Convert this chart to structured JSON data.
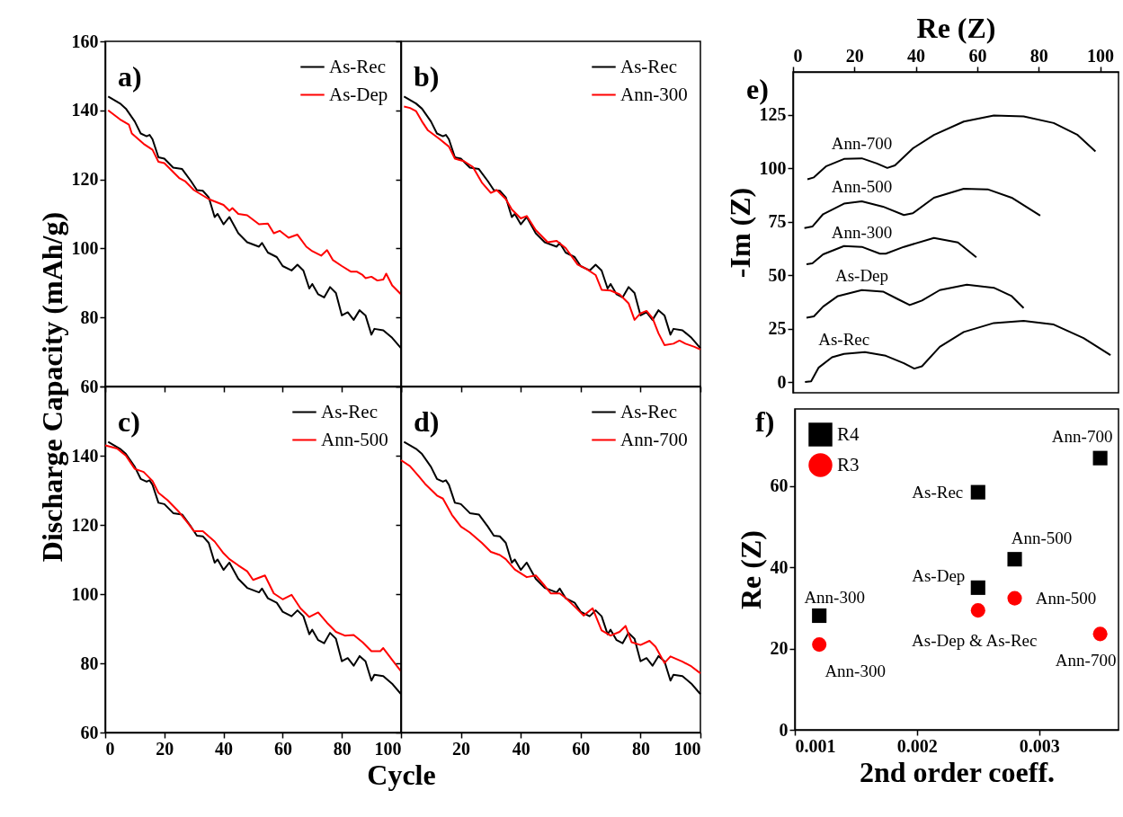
{
  "chart_data": [
    {
      "type": "line",
      "ylabel": "Discharge Capacity (mAh/g)",
      "annotations": [
        "a)"
      ],
      "xlim": [
        0,
        100
      ],
      "xticks": [
        0,
        20,
        40,
        60,
        80,
        100
      ],
      "ylim": [
        60,
        160
      ],
      "yticks": [
        60,
        80,
        100,
        120,
        140,
        160
      ],
      "tick_labels": "y",
      "legend": "top right",
      "series": [
        {
          "name": "As-Rec",
          "color": "#000000",
          "x": [
            1,
            5,
            7,
            10,
            12,
            14,
            15,
            16,
            18,
            20,
            23,
            26,
            29,
            31,
            33,
            35,
            37,
            38,
            40,
            42,
            45,
            48,
            52,
            53,
            55,
            58,
            60,
            63,
            65,
            67,
            69,
            70,
            72,
            74,
            76,
            78,
            80,
            82,
            84,
            86,
            88,
            90,
            91,
            94,
            97,
            100
          ],
          "values": [
            144,
            142,
            140.5,
            136.8,
            133.3,
            132.5,
            132.9,
            131.6,
            126.4,
            126,
            123.4,
            123,
            119.5,
            116.9,
            116.7,
            114.8,
            109.1,
            110,
            107,
            109.1,
            104.4,
            101.8,
            100.5,
            101.6,
            98.8,
            97.5,
            94.9,
            93.6,
            95.3,
            93.6,
            88.4,
            89.7,
            86.7,
            85.8,
            88.8,
            87.1,
            80.6,
            81.5,
            79.3,
            82.1,
            80.6,
            75,
            76.7,
            76.3,
            74.1,
            71.1
          ]
        },
        {
          "name": "As-Dep",
          "color": "#ff0000",
          "x": [
            1,
            5,
            8,
            9,
            13,
            16,
            18,
            20,
            25,
            27,
            30,
            35,
            40,
            42,
            43,
            45,
            48,
            50,
            52,
            55,
            57,
            59,
            62,
            65,
            68,
            70,
            73,
            75,
            77,
            80,
            83,
            85,
            87,
            88,
            90,
            92,
            94,
            95,
            97,
            100
          ],
          "values": [
            140,
            137.4,
            135.9,
            133.3,
            130.3,
            128.6,
            125.1,
            124.7,
            120.4,
            119.5,
            116.9,
            114.3,
            112.6,
            110.9,
            111.7,
            110,
            109.6,
            108.3,
            107,
            107.2,
            104.4,
            105.1,
            103.1,
            104,
            100.5,
            99.2,
            97.9,
            99.5,
            96.6,
            94.9,
            93.3,
            93.3,
            92.3,
            91.4,
            91.8,
            90.7,
            91,
            92.7,
            89.3,
            86.7
          ]
        }
      ]
    },
    {
      "type": "line",
      "annotations": [
        "b)"
      ],
      "xlim": [
        0,
        100
      ],
      "xticks": [
        0,
        20,
        40,
        60,
        80,
        100
      ],
      "ylim": [
        60,
        160
      ],
      "yticks": [
        60,
        80,
        100,
        120,
        140,
        160
      ],
      "tick_labels": false,
      "legend": "top right",
      "series": [
        {
          "name": "As-Rec",
          "color": "#000000",
          "x": [
            1,
            5,
            7,
            10,
            12,
            14,
            15,
            16,
            18,
            20,
            23,
            26,
            29,
            31,
            33,
            35,
            37,
            38,
            40,
            42,
            45,
            48,
            52,
            53,
            55,
            58,
            60,
            63,
            65,
            67,
            69,
            70,
            72,
            74,
            76,
            78,
            80,
            82,
            84,
            86,
            88,
            90,
            91,
            94,
            97,
            100
          ],
          "values": [
            144,
            142,
            140.5,
            136.8,
            133.3,
            132.5,
            132.9,
            131.6,
            126.4,
            126,
            123.4,
            123,
            119.5,
            116.9,
            116.7,
            114.8,
            109.1,
            110,
            107,
            109.1,
            104.4,
            101.8,
            100.5,
            101.6,
            98.8,
            97.5,
            94.9,
            93.6,
            95.3,
            93.6,
            88.4,
            89.7,
            86.7,
            85.8,
            88.8,
            87.1,
            80.6,
            81.5,
            79.3,
            82.1,
            80.6,
            75,
            76.7,
            76.3,
            74.1,
            71.1
          ]
        },
        {
          "name": "Ann-300",
          "color": "#ff0000",
          "x": [
            1,
            3,
            5,
            7,
            9,
            13,
            16,
            18,
            21,
            24,
            27,
            30,
            32,
            35,
            37,
            40,
            42,
            45,
            49,
            52,
            55,
            59,
            62,
            65,
            67,
            70,
            73,
            76,
            78,
            80,
            82,
            84,
            86,
            88,
            91,
            93,
            95,
            98,
            100
          ],
          "values": [
            141.1,
            140.7,
            139.8,
            136.8,
            134.2,
            131.6,
            129.5,
            126,
            125.3,
            123.6,
            119.1,
            116.1,
            116.9,
            114.3,
            111.3,
            108.7,
            109.4,
            105.3,
            101.8,
            102.2,
            100.1,
            95.3,
            94,
            92.3,
            88,
            87.8,
            86.7,
            84.1,
            79.3,
            81.2,
            81.9,
            79.8,
            75.4,
            72,
            72.4,
            73.3,
            72.4,
            71.5,
            70.7
          ]
        }
      ]
    },
    {
      "type": "line",
      "xlabel": "Cycle",
      "annotations": [
        "c)"
      ],
      "xlim": [
        0,
        100
      ],
      "xticks": [
        0,
        20,
        40,
        60,
        80,
        100
      ],
      "ylim": [
        60,
        160
      ],
      "yticks": [
        60,
        80,
        100,
        120,
        140,
        {
          "value": 160,
          "label": null
        }
      ],
      "legend": "top right",
      "series": [
        {
          "name": "As-Rec",
          "color": "#000000",
          "x": [
            1,
            5,
            7,
            10,
            12,
            14,
            15,
            16,
            18,
            20,
            23,
            26,
            29,
            31,
            33,
            35,
            37,
            38,
            40,
            42,
            45,
            48,
            52,
            53,
            55,
            58,
            60,
            63,
            65,
            67,
            69,
            70,
            72,
            74,
            76,
            78,
            80,
            82,
            84,
            86,
            88,
            90,
            91,
            94,
            97,
            100
          ],
          "values": [
            144,
            142,
            140.5,
            136.8,
            133.3,
            132.5,
            132.9,
            131.6,
            126.4,
            126,
            123.4,
            123,
            119.5,
            116.9,
            116.7,
            114.8,
            109.1,
            110,
            107,
            109.1,
            104.4,
            101.8,
            100.5,
            101.6,
            98.8,
            97.5,
            94.9,
            93.6,
            95.3,
            93.6,
            88.4,
            89.7,
            86.7,
            85.8,
            88.8,
            87.1,
            80.6,
            81.5,
            79.3,
            82.1,
            80.6,
            75,
            76.7,
            76.3,
            74.1,
            71.1
          ]
        },
        {
          "name": "Ann-500",
          "color": "#ff0000",
          "x": [
            0,
            4,
            7,
            10,
            13,
            16,
            18,
            21,
            25,
            28,
            30,
            33,
            37,
            40,
            42,
            45,
            48,
            50,
            54,
            57,
            60,
            63,
            66,
            69,
            72,
            75,
            78,
            81,
            84,
            87,
            90,
            93,
            94,
            97,
            100
          ],
          "values": [
            143,
            142.1,
            140,
            136.2,
            135.3,
            132.7,
            129.3,
            127.2,
            123.7,
            120.5,
            118.2,
            118.2,
            115.2,
            111.8,
            110.1,
            108.3,
            106.6,
            104.1,
            105.4,
            100.2,
            98.5,
            99.8,
            95.9,
            93.4,
            94.7,
            91.7,
            89.1,
            88,
            88.2,
            86.1,
            83.5,
            83.5,
            84.4,
            81,
            77.7
          ]
        }
      ]
    },
    {
      "type": "line",
      "annotations": [
        "d)"
      ],
      "xlim": [
        0,
        100
      ],
      "xticks": [
        20,
        40,
        60,
        80,
        100
      ],
      "ylim": [
        60,
        160
      ],
      "yticks": [
        60,
        80,
        100,
        120,
        140,
        160
      ],
      "tick_labels": "x",
      "legend": "top right",
      "series": [
        {
          "name": "As-Rec",
          "color": "#000000",
          "x": [
            1,
            5,
            7,
            10,
            12,
            14,
            15,
            16,
            18,
            20,
            23,
            26,
            29,
            31,
            33,
            35,
            37,
            38,
            40,
            42,
            45,
            48,
            52,
            53,
            55,
            58,
            60,
            63,
            65,
            67,
            69,
            70,
            72,
            74,
            76,
            78,
            80,
            82,
            84,
            86,
            88,
            90,
            91,
            94,
            97,
            100
          ],
          "values": [
            144,
            142,
            140.5,
            136.8,
            133.3,
            132.5,
            132.9,
            131.6,
            126.4,
            126,
            123.4,
            123,
            119.5,
            116.9,
            116.7,
            114.8,
            109.1,
            110,
            107,
            109.1,
            104.4,
            101.8,
            100.5,
            101.6,
            98.8,
            97.5,
            94.9,
            93.6,
            95.3,
            93.6,
            88.4,
            89.7,
            86.7,
            85.8,
            88.8,
            87.1,
            80.6,
            81.5,
            79.3,
            82.1,
            80.6,
            75,
            76.7,
            76.3,
            74.1,
            71.1
          ]
        },
        {
          "name": "Ann-700",
          "color": "#ff0000",
          "x": [
            0,
            3,
            6,
            8,
            12,
            14,
            17,
            20,
            23,
            27,
            30,
            33,
            35,
            38,
            42,
            45,
            48,
            50,
            53,
            55,
            58,
            61,
            64,
            67,
            70,
            73,
            75,
            77,
            80,
            83,
            85,
            88,
            90,
            94,
            97,
            100
          ],
          "values": [
            138.7,
            137,
            134,
            131.9,
            128.5,
            127.6,
            122.9,
            119.5,
            117.8,
            114.8,
            112.2,
            111.3,
            110.1,
            107.1,
            104.9,
            105.4,
            102.4,
            100.2,
            100.2,
            98.9,
            96.4,
            93.8,
            95.9,
            89.5,
            88,
            89.1,
            90.8,
            86.1,
            85.3,
            86.5,
            84.8,
            80.1,
            82,
            80.5,
            79.1,
            77.1
          ]
        }
      ]
    },
    {
      "type": "line",
      "xlabel": "Re (Z)",
      "ylabel": "-Im (Z)",
      "annotations": [
        "e)"
      ],
      "xlim": [
        0,
        106
      ],
      "xticks": [
        0,
        20,
        40,
        60,
        80,
        100
      ],
      "ylim": [
        -5,
        145
      ],
      "yticks": [
        0,
        25,
        50,
        75,
        100,
        125
      ],
      "series": [
        {
          "name": "Ann-700",
          "color": "#000000",
          "x": [
            4.7,
            6.8,
            10.7,
            16.6,
            22.4,
            27.3,
            30.7,
            33.2,
            39,
            45.9,
            55.6,
            65.4,
            75.1,
            84.9,
            92.7,
            98.5
          ],
          "values": [
            94.8,
            95.7,
            100.8,
            104.3,
            104.6,
            102.2,
            100.1,
            101.3,
            109.2,
            115.5,
            121.8,
            124.6,
            124.2,
            121.1,
            115.5,
            107.8
          ]
        },
        {
          "name": "Ann-500",
          "color": "#000000",
          "x": [
            3.7,
            6.3,
            9.8,
            16.6,
            22.4,
            29.3,
            36.1,
            39,
            45.9,
            55.6,
            63.4,
            71.2,
            80.5
          ],
          "values": [
            72,
            72.7,
            78.5,
            83.4,
            84.5,
            82,
            78.1,
            78.9,
            86.2,
            90.4,
            90.1,
            86.2,
            77.8
          ]
        },
        {
          "name": "Ann-300",
          "color": "#000000",
          "x": [
            4.4,
            6.3,
            9.8,
            16.6,
            22.4,
            28.3,
            30.2,
            36.1,
            45.9,
            53.7,
            59.7
          ],
          "values": [
            55.1,
            55.5,
            59.7,
            63.6,
            63.2,
            60,
            60,
            63.2,
            67.4,
            65.3,
            58.3
          ]
        },
        {
          "name": "As-Dep",
          "color": "#000000",
          "x": [
            4.4,
            6.8,
            9.8,
            14.6,
            22.4,
            29.3,
            34.1,
            38,
            42,
            47.8,
            56.6,
            65.4,
            71.2,
            75.1
          ],
          "values": [
            30.1,
            30.7,
            35.3,
            40.2,
            43,
            42.3,
            38.8,
            36,
            38.1,
            43,
            45.5,
            44.1,
            40.2,
            34.6
          ]
        },
        {
          "name": "As-Rec",
          "color": "#000000",
          "x": [
            3.9,
            5.9,
            8.3,
            12.7,
            16.6,
            23.4,
            30.2,
            36.1,
            39.5,
            42,
            47.8,
            55.6,
            65.4,
            75.1,
            84.9,
            94.6,
            103.4
          ],
          "values": [
            0,
            0.4,
            6.7,
            11.6,
            13.2,
            14,
            12.3,
            8.8,
            6.3,
            7.4,
            16.5,
            23.4,
            27.6,
            28.6,
            26.9,
            20.6,
            12.6
          ]
        }
      ]
    },
    {
      "type": "scatter",
      "xlabel": "2nd order coeff.",
      "ylabel": "Re (Z)",
      "xlim": [
        0.001,
        0.00365
      ],
      "xticks": [
        0.001,
        0.002,
        0.003
      ],
      "ylim": [
        0,
        79
      ],
      "yticks": [
        0,
        20,
        40,
        60
      ],
      "legend": "top left",
      "series": [
        {
          "name": "R4",
          "color": "#000000",
          "marker": "square",
          "x": [
            0.0012,
            0.0025,
            0.0025,
            0.0028,
            0.0035
          ],
          "values": [
            28.1,
            58.5,
            35,
            42,
            66.9
          ]
        },
        {
          "name": "R3",
          "color": "#ff0000",
          "marker": "circle",
          "x": [
            0.0012,
            0.0025,
            0.0028,
            0.0035
          ],
          "values": [
            21,
            29.4,
            32.4,
            23.6
          ]
        }
      ],
      "annotations": [
        "f)",
        {
          "text": "Ann-300",
          "x": 0.0012,
          "y": 28.1
        },
        {
          "text": "Ann-300",
          "x": 0.0012,
          "y": 21
        },
        {
          "text": "As-Rec",
          "x": 0.0025,
          "y": 58.5
        },
        {
          "text": "As-Dep",
          "x": 0.0025,
          "y": 35
        },
        {
          "text": "Ann-500",
          "x": 0.0028,
          "y": 42
        },
        {
          "text": "Ann-500",
          "x": 0.0028,
          "y": 32.4
        },
        {
          "text": "Ann-700",
          "x": 0.0035,
          "y": 66.9
        },
        {
          "text": "Ann-700",
          "x": 0.0035,
          "y": 23.6
        },
        {
          "text": "As-Dep & As-Rec",
          "x": 0.0025,
          "y": 29.4
        }
      ]
    }
  ]
}
